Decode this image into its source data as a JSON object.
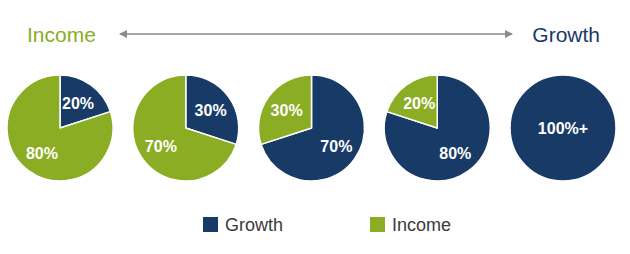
{
  "chart_data": {
    "type": "pie",
    "annotations": [
      "Income",
      "Growth"
    ],
    "series": [
      {
        "name": "Growth",
        "color": "#173a67",
        "values": [
          20,
          30,
          70,
          80,
          100
        ],
        "value_labels": [
          "20%",
          "30%",
          "70%",
          "80%",
          "100%+"
        ]
      },
      {
        "name": "Income",
        "color": "#8aad24",
        "values": [
          80,
          70,
          30,
          20,
          0
        ],
        "value_labels": [
          "80%",
          "70%",
          "30%",
          "20%",
          null
        ]
      }
    ],
    "data_labels": true,
    "legend": "bottom"
  }
}
